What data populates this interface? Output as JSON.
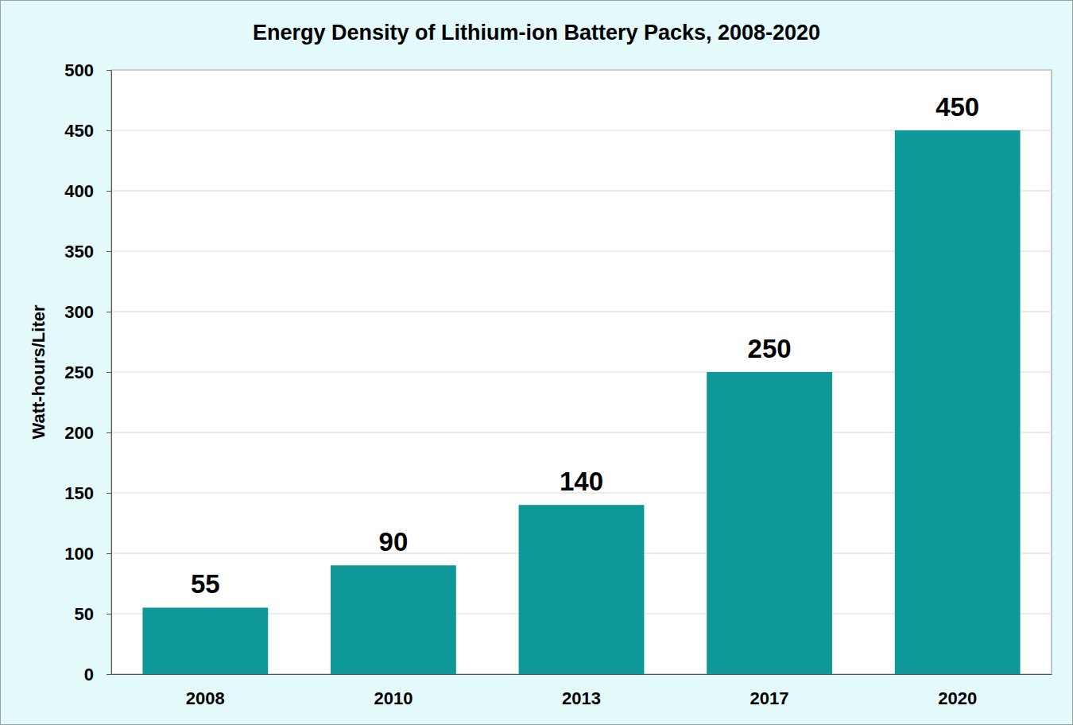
{
  "chart_data": {
    "type": "bar",
    "title": "Energy Density of Lithium-ion Battery Packs, 2008-2020",
    "y_label": "Watt-hours/Liter",
    "categories": [
      "2008",
      "2010",
      "2013",
      "2017",
      "2020"
    ],
    "values": [
      55,
      90,
      140,
      250,
      450
    ],
    "color": "#0e9898",
    "ylim": [
      0,
      500
    ],
    "yticks": [
      0,
      50,
      100,
      150,
      200,
      250,
      300,
      350,
      400,
      450,
      500
    ],
    "grid": true,
    "data_labels": true
  }
}
